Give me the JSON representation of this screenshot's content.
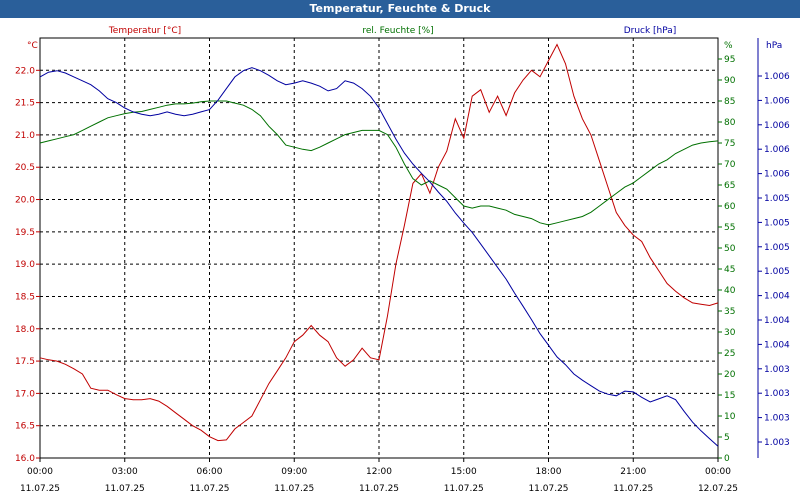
{
  "window": {
    "title": "Temperatur, Feuchte & Druck"
  },
  "chart_data": {
    "type": "line",
    "grid": true,
    "x_ticks": [
      {
        "time": "00:00",
        "date": "11.07.25"
      },
      {
        "time": "03:00",
        "date": "11.07.25"
      },
      {
        "time": "06:00",
        "date": "11.07.25"
      },
      {
        "time": "09:00",
        "date": "11.07.25"
      },
      {
        "time": "12:00",
        "date": "11.07.25"
      },
      {
        "time": "15:00",
        "date": "11.07.25"
      },
      {
        "time": "18:00",
        "date": "11.07.25"
      },
      {
        "time": "21:00",
        "date": "11.07.25"
      },
      {
        "time": "00:00",
        "date": "12.07.25"
      }
    ],
    "x_hours": [
      0,
      0.3,
      0.6,
      0.9,
      1.2,
      1.5,
      1.8,
      2.1,
      2.4,
      2.7,
      3.0,
      3.3,
      3.6,
      3.9,
      4.2,
      4.5,
      4.8,
      5.1,
      5.4,
      5.7,
      6.0,
      6.3,
      6.6,
      6.9,
      7.2,
      7.5,
      7.8,
      8.1,
      8.4,
      8.7,
      9.0,
      9.3,
      9.6,
      9.9,
      10.2,
      10.5,
      10.8,
      11.1,
      11.4,
      11.7,
      12.0,
      12.3,
      12.6,
      12.9,
      13.2,
      13.5,
      13.8,
      14.1,
      14.4,
      14.7,
      15.0,
      15.3,
      15.6,
      15.9,
      16.2,
      16.5,
      16.8,
      17.1,
      17.4,
      17.7,
      18.0,
      18.3,
      18.6,
      18.9,
      19.2,
      19.5,
      19.8,
      20.1,
      20.4,
      20.7,
      21.0,
      21.3,
      21.6,
      21.9,
      22.2,
      22.5,
      22.8,
      23.1,
      23.4,
      23.7,
      24.0
    ],
    "series": [
      {
        "name": "Temperatur [°C]",
        "color": "#c00000",
        "axis": "left",
        "values": [
          17.55,
          17.52,
          17.5,
          17.45,
          17.38,
          17.3,
          17.08,
          17.05,
          17.05,
          16.98,
          16.92,
          16.9,
          16.9,
          16.92,
          16.88,
          16.8,
          16.7,
          16.6,
          16.5,
          16.43,
          16.33,
          16.27,
          16.28,
          16.45,
          16.55,
          16.65,
          16.9,
          17.15,
          17.35,
          17.55,
          17.8,
          17.9,
          18.05,
          17.9,
          17.8,
          17.55,
          17.42,
          17.52,
          17.7,
          17.55,
          17.52,
          18.2,
          19.0,
          19.6,
          20.25,
          20.4,
          20.1,
          20.5,
          20.75,
          21.25,
          20.95,
          21.6,
          21.7,
          21.35,
          21.6,
          21.3,
          21.65,
          21.85,
          22.0,
          21.9,
          22.15,
          22.4,
          22.1,
          21.6,
          21.25,
          21.0,
          20.6,
          20.2,
          19.8,
          19.6,
          19.45,
          19.35,
          19.1,
          18.9,
          18.7,
          18.58,
          18.48,
          18.4,
          18.38,
          18.36,
          18.4
        ]
      },
      {
        "name": "rel. Feuchte [%]",
        "color": "#007000",
        "axis": "right1",
        "values": [
          75,
          75.5,
          76,
          76.5,
          77,
          78,
          79,
          80,
          81,
          81.5,
          82,
          82.3,
          82.5,
          83,
          83.5,
          84,
          84.3,
          84.3,
          84.5,
          84.8,
          85,
          85,
          85,
          84.5,
          84,
          83,
          81.5,
          79,
          77,
          74.5,
          74,
          73.5,
          73.2,
          74,
          75,
          76,
          77,
          77.5,
          78,
          78,
          78,
          77,
          74,
          70,
          66.5,
          65,
          66,
          65,
          64,
          62,
          60,
          59.5,
          60,
          60,
          59.5,
          59,
          58,
          57.5,
          57,
          56,
          55.5,
          56,
          56.5,
          57,
          57.5,
          58.5,
          60,
          61.5,
          63,
          64.5,
          65.5,
          67,
          68.5,
          70,
          71,
          72.5,
          73.5,
          74.5,
          75,
          75.3,
          75.5
        ]
      },
      {
        "name": "Druck [hPa]",
        "color": "#0000a0",
        "axis": "right2",
        "values": [
          1006.9,
          1006.96,
          1006.98,
          1006.95,
          1006.9,
          1006.85,
          1006.8,
          1006.72,
          1006.62,
          1006.57,
          1006.5,
          1006.45,
          1006.42,
          1006.4,
          1006.42,
          1006.45,
          1006.42,
          1006.4,
          1006.42,
          1006.45,
          1006.48,
          1006.6,
          1006.75,
          1006.9,
          1006.98,
          1007.02,
          1006.98,
          1006.92,
          1006.85,
          1006.8,
          1006.82,
          1006.85,
          1006.82,
          1006.78,
          1006.72,
          1006.75,
          1006.85,
          1006.82,
          1006.75,
          1006.65,
          1006.5,
          1006.3,
          1006.1,
          1005.92,
          1005.78,
          1005.66,
          1005.55,
          1005.42,
          1005.3,
          1005.15,
          1005.02,
          1004.9,
          1004.75,
          1004.6,
          1004.45,
          1004.3,
          1004.12,
          1003.95,
          1003.78,
          1003.6,
          1003.45,
          1003.3,
          1003.2,
          1003.08,
          1003.0,
          1002.93,
          1002.86,
          1002.82,
          1002.8,
          1002.86,
          1002.85,
          1002.78,
          1002.72,
          1002.76,
          1002.8,
          1002.75,
          1002.6,
          1002.46,
          1002.35,
          1002.25,
          1002.15
        ]
      }
    ],
    "axes": {
      "left": {
        "label": "°C",
        "series_label": "Temperatur [°C]",
        "color": "#c00000",
        "range": [
          16.0,
          22.5
        ],
        "ticks": [
          "16.0",
          "16.5",
          "17.0",
          "17.5",
          "18.0",
          "18.5",
          "19.0",
          "19.5",
          "20.0",
          "20.5",
          "21.0",
          "21.5",
          "22.0"
        ]
      },
      "right1": {
        "label": "%",
        "series_label": "rel. Feuchte [%]",
        "color": "#007000",
        "range": [
          0,
          100
        ],
        "ticks": [
          "0",
          "5",
          "10",
          "15",
          "20",
          "25",
          "30",
          "35",
          "40",
          "45",
          "50",
          "55",
          "60",
          "65",
          "70",
          "75",
          "80",
          "85",
          "90",
          "95"
        ]
      },
      "right2": {
        "label": "hPa",
        "series_label": "Druck [hPa]",
        "color": "#0000a0",
        "range": [
          1002.0,
          1007.4
        ],
        "ticks": [
          "1.003",
          "1.003",
          "1.003",
          "1.003",
          "1.004",
          "1.004",
          "1.004",
          "1.005",
          "1.005",
          "1.005",
          "1.005",
          "1.006",
          "1.006",
          "1.006",
          "1.006",
          "1.006"
        ]
      }
    }
  }
}
